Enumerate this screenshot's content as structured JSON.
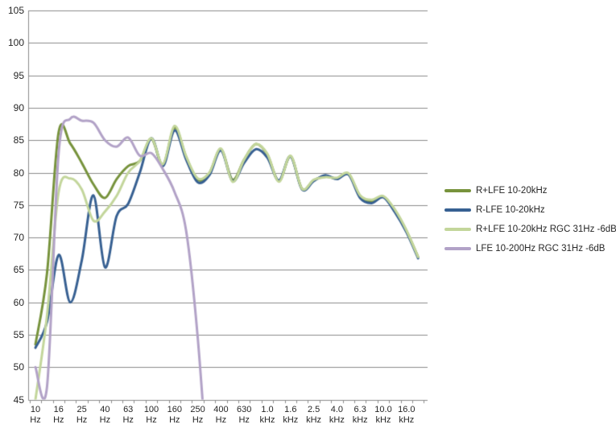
{
  "chart_data": {
    "type": "line",
    "smooth": true,
    "grid": true,
    "legend_position": "right",
    "background_color": "#FFFFFF",
    "grid_color": "#8C8C8C",
    "axis_text_color": "#262626",
    "y_axis": {
      "unit": "dB",
      "min": 45,
      "max": 105,
      "step": 5,
      "ticks": [
        105,
        100,
        95,
        90,
        85,
        80,
        75,
        70,
        65,
        60,
        55,
        50,
        45
      ]
    },
    "x_axis": {
      "scale": "log-third-octave",
      "label_every_nth_point": 2,
      "tick_labels": [
        [
          "10",
          "Hz"
        ],
        [
          "16",
          "Hz"
        ],
        [
          "25",
          "Hz"
        ],
        [
          "40",
          "Hz"
        ],
        [
          "63",
          "Hz"
        ],
        [
          "100",
          "Hz"
        ],
        [
          "160",
          "Hz"
        ],
        [
          "250",
          "Hz"
        ],
        [
          "400",
          "Hz"
        ],
        [
          "630",
          "Hz"
        ],
        [
          "1.0",
          "kHz"
        ],
        [
          "1.6",
          "kHz"
        ],
        [
          "2.5",
          "kHz"
        ],
        [
          "4.0",
          "kHz"
        ],
        [
          "6.3",
          "kHz"
        ],
        [
          "10.0",
          "kHz"
        ],
        [
          "16.0",
          "kHz"
        ]
      ]
    },
    "x_frequencies_hz": [
      10,
      12.5,
      16,
      20,
      25,
      31.5,
      40,
      50,
      63,
      80,
      100,
      125,
      160,
      200,
      250,
      315,
      400,
      500,
      630,
      800,
      1000,
      1250,
      1600,
      2000,
      2500,
      3150,
      4000,
      5000,
      6300,
      8000,
      10000,
      12500,
      16000,
      20000
    ],
    "series": [
      {
        "name": "R+LFE 10-20kHz",
        "color": "#77933C",
        "values_db": [
          53.5,
          64.5,
          86.2,
          84.5,
          81.5,
          78.2,
          76.1,
          79.0,
          81.0,
          81.8,
          85.2,
          81.2,
          86.9,
          82.4,
          78.9,
          79.9,
          83.6,
          78.9,
          82.0,
          84.4,
          82.8,
          78.7,
          82.5,
          77.5,
          78.8,
          79.4,
          79.1,
          79.8,
          76.4,
          75.6,
          76.3,
          74.2,
          71.0,
          67.0
        ]
      },
      {
        "name": "R-LFE 10-20kHz",
        "color": "#376092",
        "values_db": [
          53.0,
          57.0,
          67.3,
          60.0,
          66.5,
          76.5,
          65.4,
          73.3,
          75.2,
          80.0,
          85.3,
          81.0,
          86.5,
          82.0,
          78.5,
          79.6,
          83.4,
          78.7,
          81.5,
          83.6,
          82.3,
          78.8,
          82.5,
          77.4,
          78.7,
          79.6,
          79.0,
          79.7,
          76.1,
          75.3,
          76.2,
          73.9,
          70.8,
          66.8
        ]
      },
      {
        "name": "R+LFE 10-20kHz RGC 31Hz -6dB",
        "color": "#C3D69B",
        "values_db": [
          45.0,
          58.0,
          77.0,
          79.1,
          77.4,
          72.6,
          74.0,
          76.4,
          80.0,
          81.8,
          85.3,
          81.3,
          87.2,
          82.5,
          79.1,
          80.0,
          83.7,
          78.6,
          82.0,
          84.4,
          82.9,
          78.6,
          82.6,
          77.5,
          78.9,
          79.3,
          79.2,
          79.9,
          76.5,
          75.8,
          76.4,
          74.3,
          71.1,
          67.0
        ]
      },
      {
        "name": "LFE 10-200Hz RGC 31Hz -6dB",
        "color": "#B2A2C7",
        "values_db": [
          50.0,
          47.0,
          83.0,
          88.3,
          88.0,
          87.7,
          85.0,
          84.0,
          85.4,
          82.6,
          83.0,
          80.5,
          77.0,
          71.0,
          54.5,
          30.0,
          null,
          null,
          null,
          null,
          null,
          null,
          null,
          null,
          null,
          null,
          null,
          null,
          null,
          null,
          null,
          null,
          null,
          null
        ]
      }
    ]
  }
}
